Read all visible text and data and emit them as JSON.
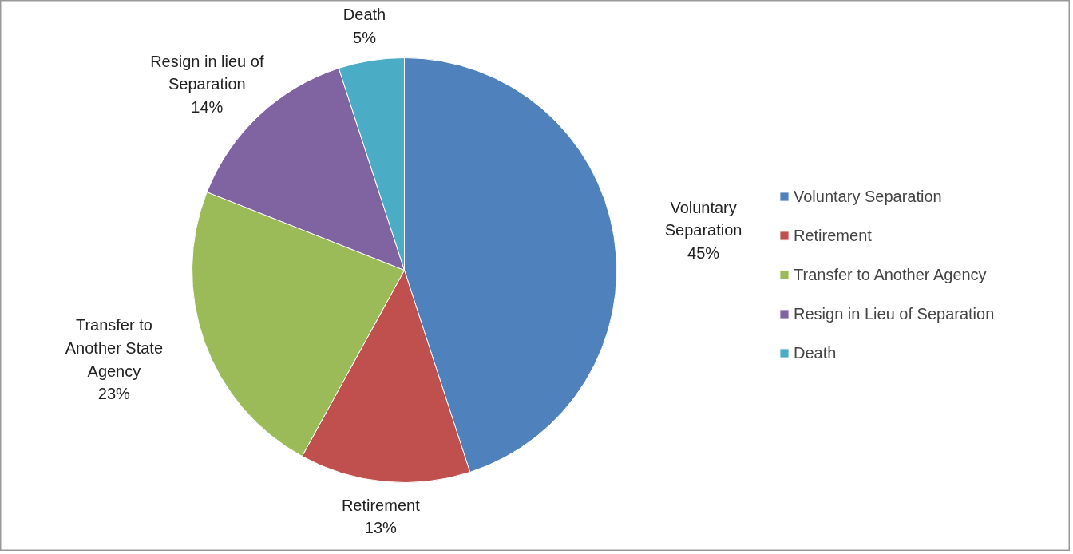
{
  "chart_data": {
    "type": "pie",
    "categories": [
      "Voluntary Separation",
      "Retirement",
      "Transfer to Another Agency",
      "Resign in Lieu of Separation",
      "Death"
    ],
    "values": [
      45,
      13,
      23,
      14,
      5
    ],
    "colors": [
      "#4f81bd",
      "#c0504d",
      "#9bbb59",
      "#8064a2",
      "#4bacc6"
    ],
    "value_labels": [
      "Voluntary\nSeparation\n45%",
      "Retirement\n13%",
      "Transfer to\nAnother State\nAgency\n23%",
      "Resign in lieu of\nSeparation\n14%",
      "Death\n5%"
    ],
    "legend": "right"
  }
}
